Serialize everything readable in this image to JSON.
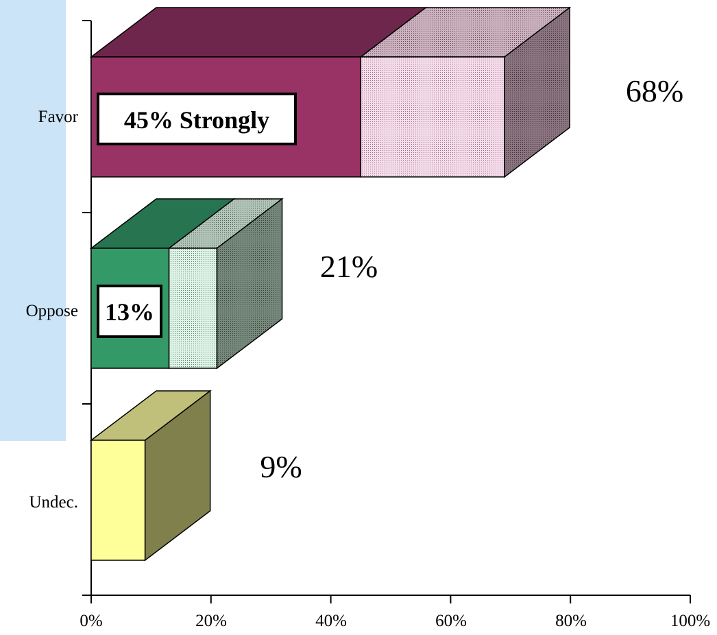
{
  "chart_data": {
    "type": "bar",
    "orientation": "horizontal",
    "stacked": true,
    "three_d": true,
    "categories": [
      "Favor",
      "Oppose",
      "Undec."
    ],
    "series": [
      {
        "values": [
          45,
          13,
          9
        ]
      },
      {
        "values": [
          24,
          8,
          0
        ]
      }
    ],
    "totals": [
      "68%",
      "21%",
      "9%"
    ],
    "box_labels": [
      "45% Strongly",
      "13%",
      ""
    ],
    "x_ticks": [
      "0%",
      "20%",
      "40%",
      "60%",
      "80%",
      "100%"
    ],
    "xlim": [
      0,
      100
    ],
    "title": "",
    "xlabel": "",
    "ylabel": "",
    "grid": false,
    "legend": "none",
    "colors": {
      "favor_front": "#993366",
      "favor_top": "#6e264c",
      "favor_light_front": "#f2dcea",
      "favor_light_top": "#c4a8b6",
      "favor_side": "#7a6470",
      "oppose_front": "#339966",
      "oppose_top": "#267550",
      "oppose_light_front": "#dcf0e4",
      "oppose_light_top": "#a5b8ac",
      "oppose_side": "#667a6e",
      "undec_front": "#ffff99",
      "undec_top": "#c0c07a",
      "undec_side": "#80804c",
      "highlight_panel": "#cce4f7"
    }
  }
}
